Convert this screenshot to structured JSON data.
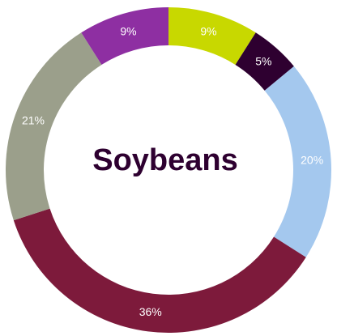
{
  "chart_data": {
    "type": "pie",
    "donut": true,
    "title": "Soybeans",
    "values": [
      9,
      5,
      20,
      36,
      21,
      9
    ],
    "value_labels": [
      "9%",
      "5%",
      "20%",
      "36%",
      "21%",
      "9%"
    ],
    "colors": [
      "#c8d800",
      "#2e0030",
      "#a4c8ee",
      "#7d1a3b",
      "#9b9f8b",
      "#8e2fa2"
    ]
  }
}
